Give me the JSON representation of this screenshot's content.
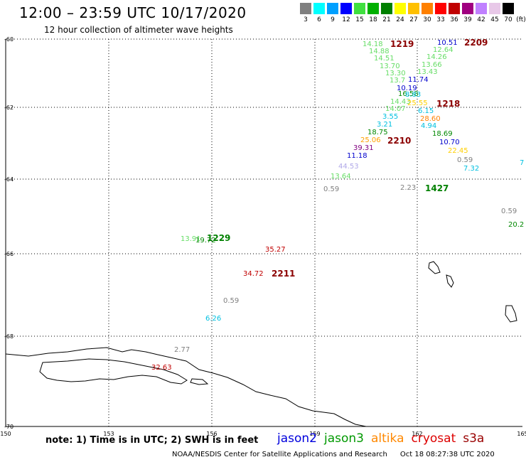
{
  "header": {
    "title": "12:00 – 23:59 UTC 10/17/2020",
    "subtitle": "12 hour collection of altimeter wave heights"
  },
  "color_scale": {
    "unit": "(ft)",
    "colors": [
      "#808080",
      "#00ffff",
      "#00a0ff",
      "#0000ff",
      "#40e040",
      "#00b000",
      "#008000",
      "#ffff00",
      "#ffc000",
      "#ff8000",
      "#ff0000",
      "#c00000",
      "#a00080",
      "#c080ff",
      "#e8c8e8",
      "#000000"
    ],
    "labels": [
      "3",
      "6",
      "9",
      "12",
      "15",
      "18",
      "21",
      "24",
      "27",
      "30",
      "33",
      "36",
      "39",
      "42",
      "45",
      "70"
    ]
  },
  "axes": {
    "lat_labels": [
      "-60",
      "-62",
      "-64",
      "-66",
      "-68",
      "-70"
    ],
    "lon_labels": [
      "150",
      "153",
      "156",
      "159",
      "162",
      "165"
    ]
  },
  "observations": [
    {
      "t": "14.18",
      "c": "#66dd66"
    },
    {
      "t": "14.88",
      "c": "#66dd66"
    },
    {
      "t": "14.51",
      "c": "#66dd66"
    },
    {
      "t": "13.70",
      "c": "#66dd66"
    },
    {
      "t": "13.30",
      "c": "#66dd66"
    },
    {
      "t": "13.7",
      "c": "#66dd66"
    },
    {
      "t": "10.19",
      "c": "#0000cc"
    },
    {
      "t": "16.58",
      "c": "#008800"
    },
    {
      "t": "14.43",
      "c": "#66dd66"
    },
    {
      "t": "14.07",
      "c": "#66dd66"
    },
    {
      "t": "3.55",
      "c": "#00c0e0"
    },
    {
      "t": "3.21",
      "c": "#00c0e0"
    },
    {
      "t": "18.75",
      "c": "#008800"
    },
    {
      "t": "25.06",
      "c": "#ffa000"
    },
    {
      "t": "39.31",
      "c": "#800080"
    },
    {
      "t": "11.18",
      "c": "#0000cc"
    },
    {
      "t": "44.53",
      "c": "#b0a8e8"
    },
    {
      "t": "13.64",
      "c": "#66dd66"
    },
    {
      "t": "10.51",
      "c": "#0000cc"
    },
    {
      "t": "12.64",
      "c": "#66dd66"
    },
    {
      "t": "14.26",
      "c": "#66dd66"
    },
    {
      "t": "13.66",
      "c": "#66dd66"
    },
    {
      "t": "13.43",
      "c": "#66dd66"
    },
    {
      "t": "11.74",
      "c": "#0000cc"
    },
    {
      "t": "8.83",
      "c": "#00c0e0"
    },
    {
      "t": "25.55",
      "c": "#ffd000"
    },
    {
      "t": "6.15",
      "c": "#00c0e0"
    },
    {
      "t": "28.60",
      "c": "#ff8000"
    },
    {
      "t": "4.94",
      "c": "#00c0e0"
    },
    {
      "t": "18.69",
      "c": "#008800"
    },
    {
      "t": "10.70",
      "c": "#0000cc"
    },
    {
      "t": "22.45",
      "c": "#ffd000"
    },
    {
      "t": "0.59",
      "c": "#808080"
    },
    {
      "t": "7.32",
      "c": "#00c0e0"
    },
    {
      "t": "7",
      "c": "#00c0e0"
    },
    {
      "t": "0.59",
      "c": "#808080"
    },
    {
      "t": "2.23",
      "c": "#808080"
    },
    {
      "t": "0.59",
      "c": "#808080"
    },
    {
      "t": "20.2",
      "c": "#008800"
    },
    {
      "t": "13.91",
      "c": "#66dd66"
    },
    {
      "t": "19.72",
      "c": "#008800"
    },
    {
      "t": "35.27",
      "c": "#c00000"
    },
    {
      "t": "34.72",
      "c": "#c00000"
    },
    {
      "t": "0.59",
      "c": "#808080"
    },
    {
      "t": "6.26",
      "c": "#00c0e0"
    },
    {
      "t": "2.77",
      "c": "#808080"
    },
    {
      "t": "32.63",
      "c": "#c00000"
    }
  ],
  "pass_times": [
    {
      "t": "1219",
      "c": "#8b0000"
    },
    {
      "t": "2209",
      "c": "#8b0000"
    },
    {
      "t": "1218",
      "c": "#8b0000"
    },
    {
      "t": "2210",
      "c": "#8b0000"
    },
    {
      "t": "1427",
      "c": "#008000"
    },
    {
      "t": "1229",
      "c": "#008000"
    },
    {
      "t": "2211",
      "c": "#8b0000"
    }
  ],
  "note": "note:  1) Time is in UTC;  2) SWH is in feet",
  "satellites": [
    {
      "name": "jason2",
      "color": "#0000dd"
    },
    {
      "name": "jason3",
      "color": "#009900"
    },
    {
      "name": "altika",
      "color": "#ff8800"
    },
    {
      "name": "cryosat",
      "color": "#dd0000"
    },
    {
      "name": "s3a",
      "color": "#990000"
    }
  ],
  "footer": {
    "credit": "NOAA/NESDIS Center for Satellite Applications and Research",
    "timestamp": "Oct 18 08:27:38 UTC 2020"
  }
}
